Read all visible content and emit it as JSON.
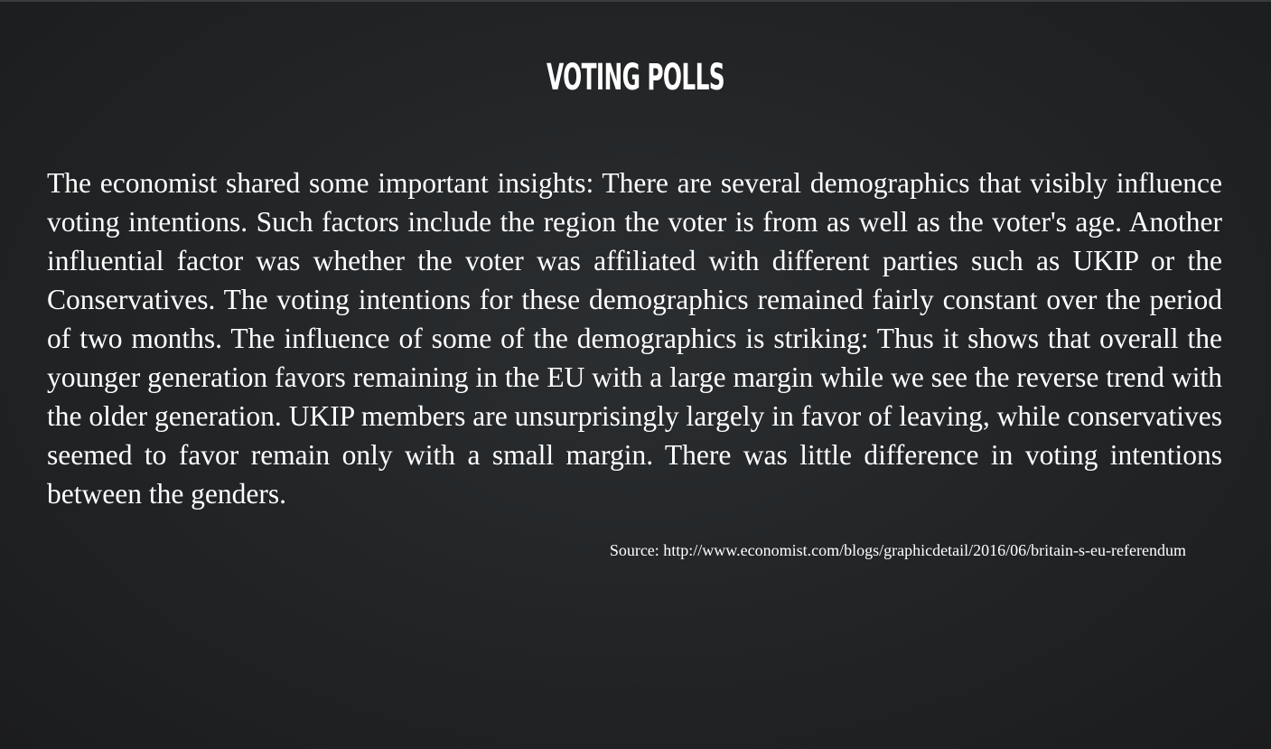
{
  "slide": {
    "title": "VOTING POLLS",
    "body": "The economist shared some important insights: There are several demographics that visibly influence voting intentions. Such factors include the region the voter is from as well as the voter's age. Another influential factor was whether the voter was affiliated with different parties such as UKIP or the Conservatives. The voting intentions for these demographics remained fairly constant over the period of two months. The influence of some of the demographics is striking: Thus it shows that overall the younger generation favors remaining in the EU with a large margin while we see the reverse trend with the older generation. UKIP members are unsurprisingly largely in favor of leaving, while conservatives seemed to favor remain only with a small margin. There was little difference in voting intentions between the genders.",
    "source": "Source: http://www.economist.com/blogs/graphicdetail/2016/06/britain-s-eu-referendum"
  },
  "colors": {
    "background": "#232527",
    "text": "#ffffff"
  }
}
